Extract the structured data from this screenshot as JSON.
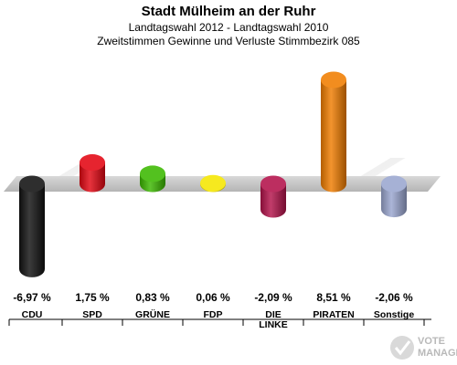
{
  "header": {
    "title": "Stadt Mülheim an der Ruhr",
    "subtitle": "Landtagswahl 2012 - Landtagswahl 2010",
    "description": "Zweitstimmen Gewinne und Verluste Stimmbezirk 085"
  },
  "chart_data": {
    "type": "bar",
    "title": "Stadt Mülheim an der Ruhr",
    "subtitle": "Landtagswahl 2012 - Landtagswahl 2010 / Zweitstimmen Gewinne und Verluste Stimmbezirk 085",
    "categories": [
      "CDU",
      "SPD",
      "GRÜNE",
      "FDP",
      "DIE LINKE",
      "PIRATEN",
      "Sonstige"
    ],
    "values": [
      -6.97,
      1.75,
      0.83,
      0.06,
      -2.09,
      8.51,
      -2.06
    ],
    "labels": [
      "-6,97 %",
      "1,75 %",
      "0,83 %",
      "0,06 %",
      "-2,09 %",
      "8,51 %",
      "-2,06 %"
    ],
    "colors": [
      "#111111",
      "#e30613",
      "#3cb800",
      "#f5e600",
      "#b3124a",
      "#f07d00",
      "#9aa6cf"
    ],
    "unit": "%",
    "baseline": 0,
    "grid": false,
    "legend": "none"
  },
  "watermark": {
    "line1": "VOTE",
    "line2": "MANAGER"
  }
}
